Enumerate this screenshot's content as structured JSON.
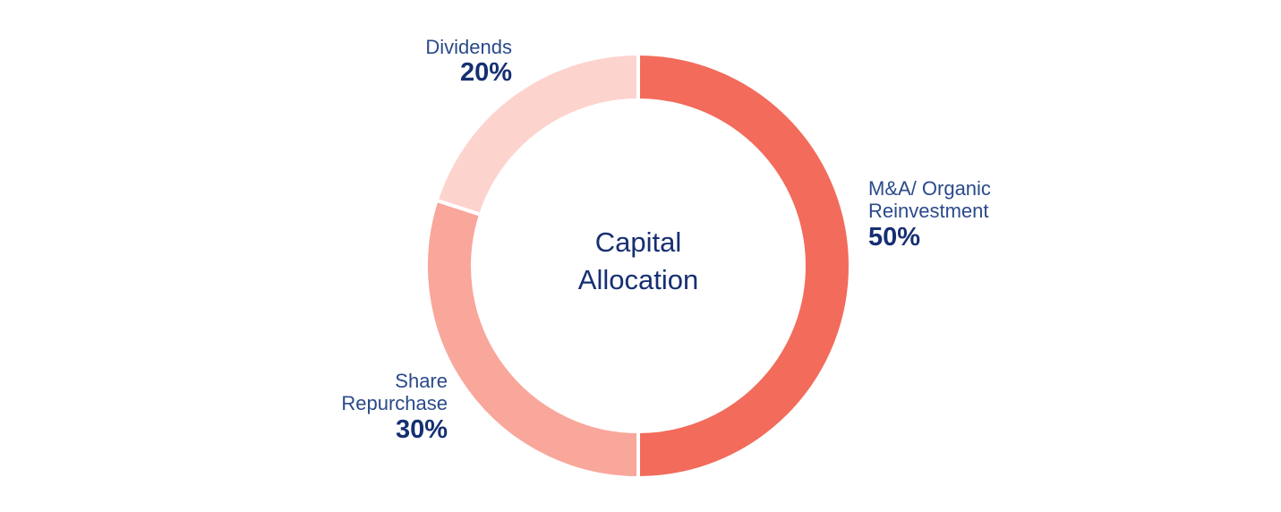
{
  "chart_data": {
    "type": "pie",
    "subtype": "donut",
    "title": "Capital Allocation",
    "categories": [
      "M&A/ Organic Reinvestment",
      "Share Repurchase",
      "Dividends"
    ],
    "values": [
      50,
      30,
      20
    ],
    "unit": "%",
    "colors": [
      "#f26b5b",
      "#f9a69b",
      "#fdd3ce"
    ],
    "start_angle": "12 o'clock, clockwise",
    "legend": "none (direct labels)"
  },
  "center": {
    "line1": "Capital",
    "line2": "Allocation"
  },
  "labels": {
    "ma": {
      "line1": "M&A/ Organic",
      "line2": "Reinvestment",
      "pct": "50%"
    },
    "share": {
      "line1": "Share",
      "line2": "Repurchase",
      "pct": "30%"
    },
    "dividends": {
      "line1": "Dividends",
      "pct": "20%"
    }
  }
}
